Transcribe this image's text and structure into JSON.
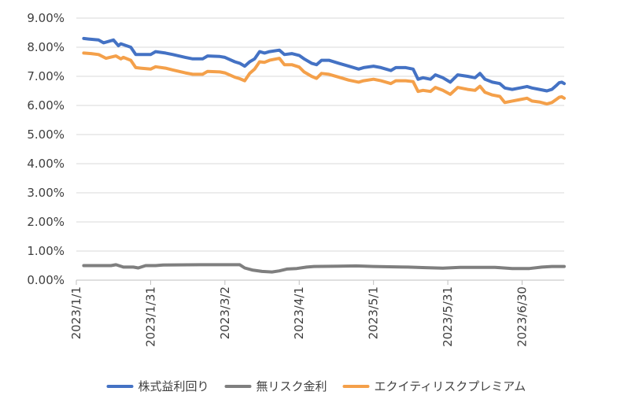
{
  "chart_data": {
    "type": "line",
    "ylim": [
      0,
      0.09
    ],
    "y_ticks": [
      "0.00%",
      "1.00%",
      "2.00%",
      "3.00%",
      "4.00%",
      "5.00%",
      "6.00%",
      "7.00%",
      "8.00%",
      "9.00%"
    ],
    "x_ticks": [
      "2023/1/1",
      "2023/1/31",
      "2023/3/2",
      "2023/4/1",
      "2023/5/1",
      "2023/5/31",
      "2023/6/30"
    ],
    "x_range": [
      "2023/1/1",
      "2023/7/17"
    ],
    "grid": "horizontal",
    "legend_position": "bottom",
    "series": [
      {
        "name": "株式益利回り",
        "color": "#4472C4",
        "points": [
          [
            "2023/1/4",
            8.3
          ],
          [
            "2023/1/6",
            8.28
          ],
          [
            "2023/1/10",
            8.25
          ],
          [
            "2023/1/12",
            8.15
          ],
          [
            "2023/1/16",
            8.25
          ],
          [
            "2023/1/18",
            8.05
          ],
          [
            "2023/1/19",
            8.12
          ],
          [
            "2023/1/23",
            8.0
          ],
          [
            "2023/1/25",
            7.75
          ],
          [
            "2023/1/27",
            7.75
          ],
          [
            "2023/1/31",
            7.75
          ],
          [
            "2023/2/2",
            7.85
          ],
          [
            "2023/2/6",
            7.8
          ],
          [
            "2023/2/9",
            7.75
          ],
          [
            "2023/2/14",
            7.65
          ],
          [
            "2023/2/17",
            7.6
          ],
          [
            "2023/2/21",
            7.6
          ],
          [
            "2023/2/23",
            7.7
          ],
          [
            "2023/2/28",
            7.68
          ],
          [
            "2023/3/2",
            7.65
          ],
          [
            "2023/3/6",
            7.5
          ],
          [
            "2023/3/8",
            7.45
          ],
          [
            "2023/3/10",
            7.35
          ],
          [
            "2023/3/12",
            7.5
          ],
          [
            "2023/3/14",
            7.6
          ],
          [
            "2023/3/16",
            7.85
          ],
          [
            "2023/3/18",
            7.8
          ],
          [
            "2023/3/20",
            7.85
          ],
          [
            "2023/3/24",
            7.9
          ],
          [
            "2023/3/26",
            7.75
          ],
          [
            "2023/3/29",
            7.78
          ],
          [
            "2023/4/1",
            7.72
          ],
          [
            "2023/4/3",
            7.6
          ],
          [
            "2023/4/6",
            7.45
          ],
          [
            "2023/4/8",
            7.4
          ],
          [
            "2023/4/10",
            7.55
          ],
          [
            "2023/4/13",
            7.55
          ],
          [
            "2023/4/17",
            7.45
          ],
          [
            "2023/4/21",
            7.35
          ],
          [
            "2023/4/25",
            7.25
          ],
          [
            "2023/4/27",
            7.3
          ],
          [
            "2023/5/1",
            7.35
          ],
          [
            "2023/5/4",
            7.3
          ],
          [
            "2023/5/8",
            7.2
          ],
          [
            "2023/5/10",
            7.3
          ],
          [
            "2023/5/14",
            7.3
          ],
          [
            "2023/5/17",
            7.25
          ],
          [
            "2023/5/19",
            6.9
          ],
          [
            "2023/5/21",
            6.95
          ],
          [
            "2023/5/24",
            6.9
          ],
          [
            "2023/5/26",
            7.05
          ],
          [
            "2023/5/29",
            6.95
          ],
          [
            "2023/6/1",
            6.8
          ],
          [
            "2023/6/4",
            7.05
          ],
          [
            "2023/6/8",
            7.0
          ],
          [
            "2023/6/11",
            6.95
          ],
          [
            "2023/6/13",
            7.1
          ],
          [
            "2023/6/15",
            6.9
          ],
          [
            "2023/6/18",
            6.8
          ],
          [
            "2023/6/21",
            6.75
          ],
          [
            "2023/6/23",
            6.6
          ],
          [
            "2023/6/26",
            6.55
          ],
          [
            "2023/6/29",
            6.6
          ],
          [
            "2023/7/2",
            6.65
          ],
          [
            "2023/7/4",
            6.6
          ],
          [
            "2023/7/7",
            6.55
          ],
          [
            "2023/7/10",
            6.5
          ],
          [
            "2023/7/12",
            6.55
          ],
          [
            "2023/7/14",
            6.7
          ],
          [
            "2023/7/15",
            6.78
          ],
          [
            "2023/7/16",
            6.8
          ],
          [
            "2023/7/17",
            6.75
          ]
        ]
      },
      {
        "name": "無リスク金利",
        "color": "#7F7F7F",
        "points": [
          [
            "2023/1/4",
            0.5
          ],
          [
            "2023/1/15",
            0.5
          ],
          [
            "2023/1/17",
            0.53
          ],
          [
            "2023/1/20",
            0.45
          ],
          [
            "2023/1/24",
            0.45
          ],
          [
            "2023/1/26",
            0.42
          ],
          [
            "2023/1/29",
            0.5
          ],
          [
            "2023/2/2",
            0.5
          ],
          [
            "2023/2/5",
            0.52
          ],
          [
            "2023/2/20",
            0.53
          ],
          [
            "2023/3/8",
            0.53
          ],
          [
            "2023/3/10",
            0.42
          ],
          [
            "2023/3/13",
            0.35
          ],
          [
            "2023/3/17",
            0.3
          ],
          [
            "2023/3/21",
            0.28
          ],
          [
            "2023/3/24",
            0.32
          ],
          [
            "2023/3/27",
            0.38
          ],
          [
            "2023/3/31",
            0.4
          ],
          [
            "2023/4/4",
            0.45
          ],
          [
            "2023/4/7",
            0.47
          ],
          [
            "2023/4/17",
            0.48
          ],
          [
            "2023/4/24",
            0.49
          ],
          [
            "2023/5/1",
            0.47
          ],
          [
            "2023/5/15",
            0.45
          ],
          [
            "2023/5/22",
            0.43
          ],
          [
            "2023/5/29",
            0.41
          ],
          [
            "2023/6/5",
            0.44
          ],
          [
            "2023/6/19",
            0.44
          ],
          [
            "2023/6/26",
            0.4
          ],
          [
            "2023/7/3",
            0.4
          ],
          [
            "2023/7/8",
            0.45
          ],
          [
            "2023/7/12",
            0.47
          ],
          [
            "2023/7/17",
            0.47
          ]
        ]
      },
      {
        "name": "エクイティリスクプレミアム",
        "color": "#F4A04A",
        "points": [
          [
            "2023/1/4",
            7.8
          ],
          [
            "2023/1/7",
            7.78
          ],
          [
            "2023/1/10",
            7.75
          ],
          [
            "2023/1/13",
            7.62
          ],
          [
            "2023/1/17",
            7.7
          ],
          [
            "2023/1/19",
            7.6
          ],
          [
            "2023/1/20",
            7.65
          ],
          [
            "2023/1/23",
            7.55
          ],
          [
            "2023/1/25",
            7.3
          ],
          [
            "2023/1/27",
            7.28
          ],
          [
            "2023/1/31",
            7.25
          ],
          [
            "2023/2/2",
            7.33
          ],
          [
            "2023/2/6",
            7.28
          ],
          [
            "2023/2/9",
            7.22
          ],
          [
            "2023/2/14",
            7.12
          ],
          [
            "2023/2/17",
            7.07
          ],
          [
            "2023/2/21",
            7.07
          ],
          [
            "2023/2/23",
            7.17
          ],
          [
            "2023/2/28",
            7.15
          ],
          [
            "2023/3/2",
            7.12
          ],
          [
            "2023/3/6",
            6.97
          ],
          [
            "2023/3/8",
            6.92
          ],
          [
            "2023/3/10",
            6.85
          ],
          [
            "2023/3/12",
            7.1
          ],
          [
            "2023/3/14",
            7.25
          ],
          [
            "2023/3/16",
            7.5
          ],
          [
            "2023/3/18",
            7.48
          ],
          [
            "2023/3/20",
            7.55
          ],
          [
            "2023/3/24",
            7.62
          ],
          [
            "2023/3/26",
            7.4
          ],
          [
            "2023/3/29",
            7.4
          ],
          [
            "2023/4/1",
            7.32
          ],
          [
            "2023/4/3",
            7.15
          ],
          [
            "2023/4/6",
            7.0
          ],
          [
            "2023/4/8",
            6.93
          ],
          [
            "2023/4/10",
            7.1
          ],
          [
            "2023/4/13",
            7.07
          ],
          [
            "2023/4/17",
            6.97
          ],
          [
            "2023/4/21",
            6.87
          ],
          [
            "2023/4/25",
            6.8
          ],
          [
            "2023/4/27",
            6.85
          ],
          [
            "2023/5/1",
            6.9
          ],
          [
            "2023/5/4",
            6.85
          ],
          [
            "2023/5/8",
            6.75
          ],
          [
            "2023/5/10",
            6.85
          ],
          [
            "2023/5/14",
            6.85
          ],
          [
            "2023/5/17",
            6.82
          ],
          [
            "2023/5/19",
            6.48
          ],
          [
            "2023/5/21",
            6.52
          ],
          [
            "2023/5/24",
            6.48
          ],
          [
            "2023/5/26",
            6.62
          ],
          [
            "2023/5/29",
            6.52
          ],
          [
            "2023/6/1",
            6.38
          ],
          [
            "2023/6/4",
            6.62
          ],
          [
            "2023/6/8",
            6.55
          ],
          [
            "2023/6/11",
            6.52
          ],
          [
            "2023/6/13",
            6.66
          ],
          [
            "2023/6/15",
            6.45
          ],
          [
            "2023/6/18",
            6.36
          ],
          [
            "2023/6/21",
            6.31
          ],
          [
            "2023/6/23",
            6.1
          ],
          [
            "2023/6/26",
            6.15
          ],
          [
            "2023/6/29",
            6.2
          ],
          [
            "2023/7/2",
            6.25
          ],
          [
            "2023/7/4",
            6.15
          ],
          [
            "2023/7/7",
            6.12
          ],
          [
            "2023/7/10",
            6.05
          ],
          [
            "2023/7/12",
            6.1
          ],
          [
            "2023/7/14",
            6.22
          ],
          [
            "2023/7/15",
            6.28
          ],
          [
            "2023/7/16",
            6.3
          ],
          [
            "2023/7/17",
            6.25
          ]
        ]
      }
    ]
  }
}
